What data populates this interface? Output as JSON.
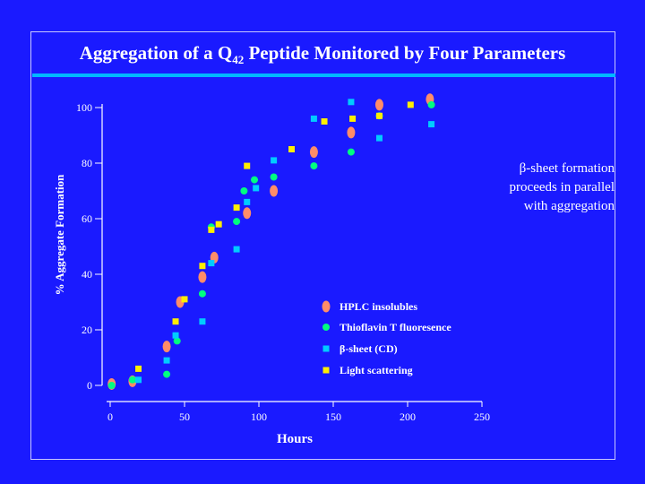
{
  "chart_data": {
    "type": "scatter",
    "title_main": "Aggregation of a Q",
    "title_sub": "42",
    "title_rest": " Peptide Monitored by Four Parameters",
    "xlabel": "Hours",
    "ylabel": "% Aggregate Formation",
    "xlim": [
      0,
      250
    ],
    "ylim": [
      0,
      105
    ],
    "xticks": [
      0,
      50,
      100,
      150,
      200,
      250
    ],
    "yticks": [
      0,
      20,
      40,
      60,
      80,
      100
    ],
    "annotation": "β-sheet formation\nproceeds in parallel\nwith  aggregation",
    "legend_position": "lower-right",
    "series": [
      {
        "name": "HPLC insolubles",
        "marker": "oval",
        "color": "#ff8c69",
        "points": [
          [
            1,
            0.5
          ],
          [
            15,
            1.5
          ],
          [
            38,
            14
          ],
          [
            47,
            30
          ],
          [
            62,
            39
          ],
          [
            70,
            46
          ],
          [
            92,
            62
          ],
          [
            110,
            70
          ],
          [
            137,
            84
          ],
          [
            162,
            91
          ],
          [
            181,
            101
          ],
          [
            215,
            103
          ]
        ]
      },
      {
        "name": "Thioflavin T fluoresence",
        "marker": "circle",
        "color": "#00ff80",
        "points": [
          [
            1,
            0
          ],
          [
            15,
            2
          ],
          [
            38,
            4
          ],
          [
            45,
            16
          ],
          [
            62,
            33
          ],
          [
            68,
            57
          ],
          [
            85,
            59
          ],
          [
            90,
            70
          ],
          [
            97,
            74
          ],
          [
            110,
            75
          ],
          [
            137,
            79
          ],
          [
            162,
            84
          ],
          [
            181,
            97
          ],
          [
            216,
            101
          ]
        ]
      },
      {
        "name": "β-sheet (CD)",
        "marker": "square",
        "color": "#00ccff",
        "points": [
          [
            19,
            2
          ],
          [
            38,
            9
          ],
          [
            44,
            18
          ],
          [
            62,
            23
          ],
          [
            68,
            44
          ],
          [
            85,
            49
          ],
          [
            92,
            66
          ],
          [
            98,
            71
          ],
          [
            110,
            81
          ],
          [
            137,
            96
          ],
          [
            162,
            102
          ],
          [
            181,
            89
          ],
          [
            216,
            94
          ]
        ]
      },
      {
        "name": "Light scattering",
        "marker": "square",
        "color": "#ffee00",
        "points": [
          [
            19,
            6
          ],
          [
            44,
            23
          ],
          [
            50,
            31
          ],
          [
            62,
            43
          ],
          [
            68,
            56
          ],
          [
            73,
            58
          ],
          [
            85,
            64
          ],
          [
            92,
            79
          ],
          [
            122,
            85
          ],
          [
            144,
            95
          ],
          [
            163,
            96
          ],
          [
            181,
            97
          ],
          [
            202,
            101
          ]
        ]
      }
    ]
  }
}
